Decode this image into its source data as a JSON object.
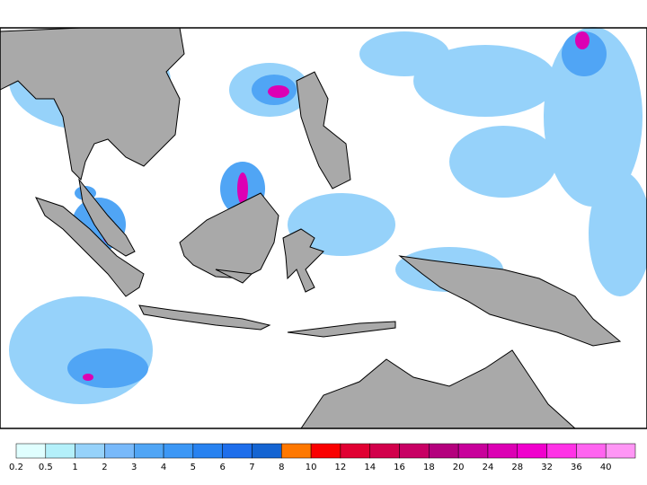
{
  "colorbar": {
    "levels": [
      0.2,
      0.5,
      1,
      2,
      3,
      4,
      5,
      6,
      7,
      8,
      10,
      12,
      14,
      16,
      18,
      20,
      24,
      28,
      32,
      36,
      40
    ],
    "colors": [
      "#e0ffff",
      "#b4f0fa",
      "#96d2fa",
      "#78b9fa",
      "#50a5f5",
      "#3c97f5",
      "#2882f0",
      "#1e6eeb",
      "#1464d2",
      "#ff7800",
      "#fa0000",
      "#e10032",
      "#d2004b",
      "#c80064",
      "#b4007d",
      "#c8009b",
      "#dc00b4",
      "#f000cd",
      "#ff32e6",
      "#ff64f0",
      "#ff96f5"
    ]
  }
}
